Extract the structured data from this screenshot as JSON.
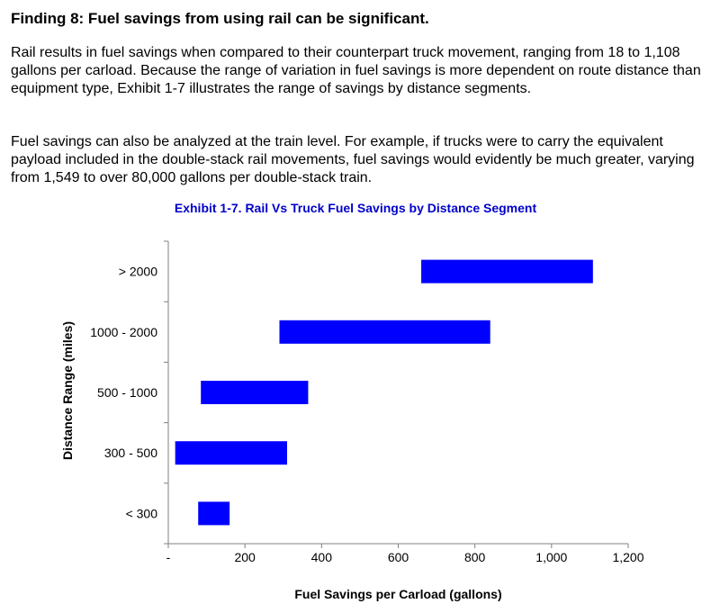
{
  "finding": {
    "heading": "Finding 8: Fuel savings from using rail can be significant.",
    "paragraphs": [
      "Rail results in fuel savings when compared to their counterpart truck movement, ranging from 18 to 1,108 gallons per carload. Because the range of variation in fuel savings is more dependent on route distance than equipment type, Exhibit 1-7 illustrates the range of savings by distance segments.",
      "Fuel savings can also be analyzed at the train level. For example, if trucks were to carry the equivalent payload included in the double-stack rail movements, fuel savings would evidently be much greater, varying from 1,549 to over 80,000 gallons per double-stack train."
    ]
  },
  "colors": {
    "bar": "#0000FF",
    "title": "#0000CC",
    "axis": "#808080"
  },
  "chart_data": {
    "type": "bar",
    "orientation": "horizontal",
    "title": "Exhibit 1-7. Rail Vs Truck Fuel Savings by Distance Segment",
    "xlabel": "Fuel Savings per Carload (gallons)",
    "ylabel": "Distance Range (miles)",
    "xlim": [
      0,
      1200
    ],
    "xticks": [
      0,
      200,
      400,
      600,
      800,
      1000,
      1200
    ],
    "xtick_labels": [
      "-",
      "200",
      "400",
      "600",
      "800",
      "1,000",
      "1,200"
    ],
    "categories": [
      "> 2000",
      "1000 - 2000",
      "500 - 1000",
      "300 - 500",
      "< 300"
    ],
    "ranges": [
      [
        660,
        1108
      ],
      [
        290,
        840
      ],
      [
        85,
        365
      ],
      [
        18,
        310
      ],
      [
        78,
        160
      ]
    ],
    "grid": false,
    "legend": "none"
  }
}
